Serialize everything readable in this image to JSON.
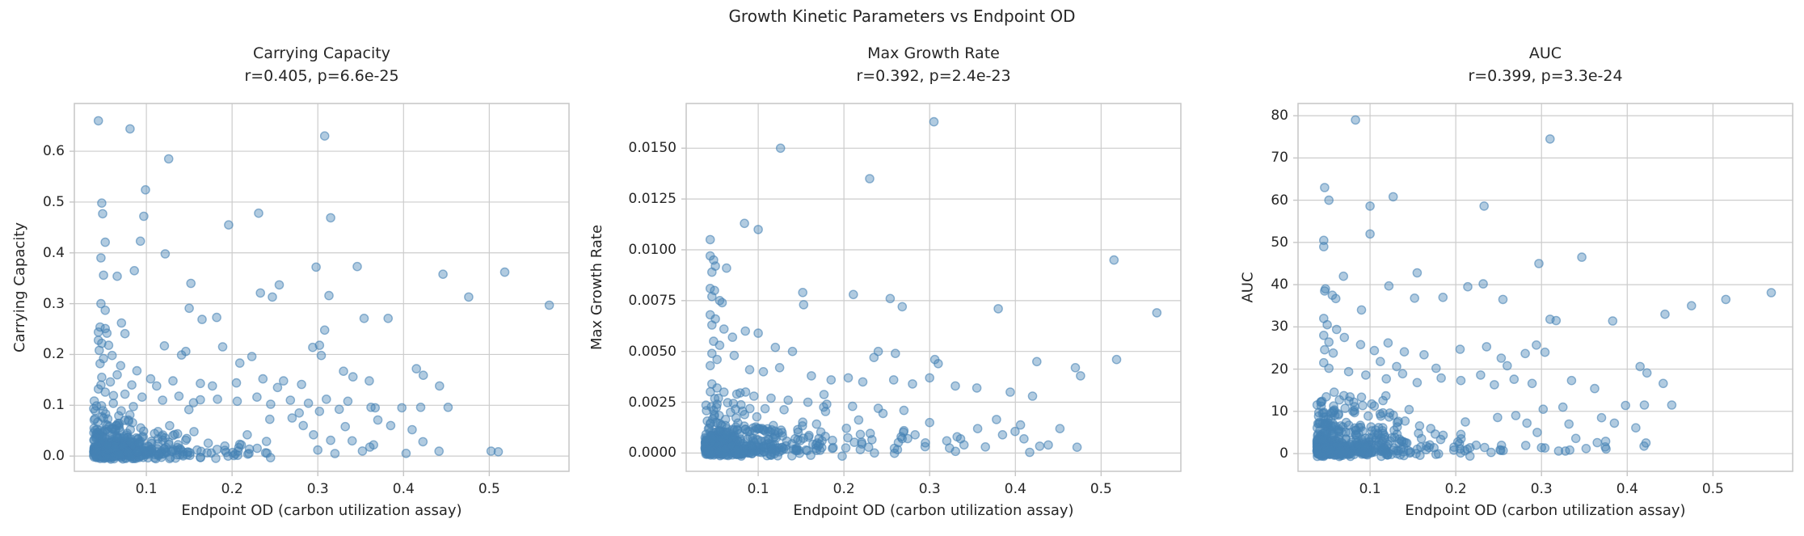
{
  "figure": {
    "suptitle": "Growth Kinetic Parameters vs Endpoint OD",
    "background": "#ffffff",
    "text_color": "#262626",
    "grid_color": "#cccccc",
    "spine_color": "#c6c6c6",
    "marker": {
      "color": "#4682b4",
      "fill_alpha": 0.42,
      "edge_alpha": 0.6,
      "radius": 5.1,
      "edge_width": 1.4
    }
  },
  "chart_data": [
    {
      "type": "scatter",
      "title_line1": "Carrying Capacity",
      "title_line2": "r=0.405, p=6.6e-25",
      "stats": {
        "r": 0.405,
        "p": "6.6e-25"
      },
      "xlabel": "Endpoint OD (carbon utilization assay)",
      "ylabel": "Carrying Capacity",
      "xlim": [
        0.016,
        0.593
      ],
      "ylim": [
        -0.03,
        0.694
      ],
      "xticks": [
        0.1,
        0.2,
        0.3,
        0.4,
        0.5
      ],
      "xtick_labels": [
        "0.1",
        "0.2",
        "0.3",
        "0.4",
        "0.5"
      ],
      "yticks": [
        0.0,
        0.1,
        0.2,
        0.3,
        0.4,
        0.5,
        0.6
      ],
      "ytick_labels": [
        "0.0",
        "0.1",
        "0.2",
        "0.3",
        "0.4",
        "0.5",
        "0.6"
      ],
      "grid": true,
      "legend": false,
      "outlier_points": [
        [
          0.044,
          0.66
        ],
        [
          0.081,
          0.644
        ],
        [
          0.308,
          0.63
        ],
        [
          0.126,
          0.585
        ],
        [
          0.099,
          0.524
        ],
        [
          0.048,
          0.498
        ],
        [
          0.049,
          0.477
        ],
        [
          0.097,
          0.472
        ],
        [
          0.231,
          0.478
        ],
        [
          0.196,
          0.455
        ],
        [
          0.315,
          0.469
        ],
        [
          0.052,
          0.421
        ],
        [
          0.093,
          0.423
        ],
        [
          0.122,
          0.398
        ],
        [
          0.047,
          0.39
        ],
        [
          0.086,
          0.365
        ],
        [
          0.05,
          0.356
        ],
        [
          0.066,
          0.354
        ],
        [
          0.152,
          0.34
        ],
        [
          0.298,
          0.372
        ],
        [
          0.346,
          0.373
        ],
        [
          0.446,
          0.358
        ],
        [
          0.518,
          0.362
        ],
        [
          0.476,
          0.313
        ],
        [
          0.57,
          0.297
        ],
        [
          0.255,
          0.337
        ],
        [
          0.233,
          0.321
        ],
        [
          0.247,
          0.313
        ],
        [
          0.313,
          0.316
        ],
        [
          0.15,
          0.291
        ],
        [
          0.165,
          0.269
        ],
        [
          0.182,
          0.273
        ],
        [
          0.308,
          0.248
        ],
        [
          0.302,
          0.218
        ],
        [
          0.354,
          0.271
        ],
        [
          0.382,
          0.271
        ],
        [
          0.047,
          0.3
        ],
        [
          0.052,
          0.287
        ],
        [
          0.046,
          0.254
        ],
        [
          0.052,
          0.251
        ],
        [
          0.044,
          0.244
        ],
        [
          0.054,
          0.242
        ],
        [
          0.071,
          0.262
        ],
        [
          0.075,
          0.241
        ],
        [
          0.121,
          0.217
        ],
        [
          0.141,
          0.199
        ],
        [
          0.146,
          0.206
        ],
        [
          0.189,
          0.215
        ],
        [
          0.209,
          0.183
        ],
        [
          0.223,
          0.196
        ],
        [
          0.294,
          0.214
        ],
        [
          0.304,
          0.198
        ],
        [
          0.33,
          0.167
        ],
        [
          0.341,
          0.156
        ],
        [
          0.36,
          0.148
        ],
        [
          0.415,
          0.172
        ],
        [
          0.423,
          0.159
        ],
        [
          0.398,
          0.095
        ],
        [
          0.42,
          0.096
        ],
        [
          0.332,
          0.058
        ],
        [
          0.352,
          0.01
        ],
        [
          0.37,
          0.071
        ],
        [
          0.044,
          0.228
        ],
        [
          0.048,
          0.222
        ],
        [
          0.056,
          0.218
        ],
        [
          0.045,
          0.208
        ],
        [
          0.06,
          0.198
        ],
        [
          0.05,
          0.192
        ],
        [
          0.046,
          0.182
        ],
        [
          0.07,
          0.178
        ],
        [
          0.089,
          0.168
        ],
        [
          0.066,
          0.16
        ],
        [
          0.048,
          0.155
        ],
        [
          0.058,
          0.146
        ],
        [
          0.083,
          0.14
        ],
        [
          0.105,
          0.152
        ],
        [
          0.112,
          0.138
        ],
        [
          0.131,
          0.148
        ],
        [
          0.163,
          0.143
        ],
        [
          0.177,
          0.138
        ],
        [
          0.205,
          0.144
        ],
        [
          0.236,
          0.152
        ],
        [
          0.253,
          0.135
        ],
        [
          0.26,
          0.148
        ],
        [
          0.281,
          0.141
        ],
        [
          0.047,
          0.14
        ],
        [
          0.044,
          0.132
        ],
        [
          0.052,
          0.126
        ],
        [
          0.075,
          0.122
        ],
        [
          0.095,
          0.116
        ],
        [
          0.119,
          0.11
        ],
        [
          0.138,
          0.118
        ],
        [
          0.155,
          0.105
        ],
        [
          0.183,
          0.112
        ],
        [
          0.206,
          0.108
        ],
        [
          0.229,
          0.116
        ],
        [
          0.245,
          0.102
        ],
        [
          0.268,
          0.11
        ],
        [
          0.289,
          0.104
        ],
        [
          0.31,
          0.112
        ],
        [
          0.335,
          0.108
        ],
        [
          0.362,
          0.096
        ],
        [
          0.442,
          0.138
        ],
        [
          0.385,
          0.06
        ],
        [
          0.41,
          0.052
        ],
        [
          0.302,
          0.088
        ],
        [
          0.325,
          0.092
        ],
        [
          0.452,
          0.096
        ],
        [
          0.34,
          0.03
        ],
        [
          0.365,
          0.022
        ],
        [
          0.3,
          0.012
        ],
        [
          0.32,
          0.005
        ],
        [
          0.283,
          0.06
        ],
        [
          0.27,
          0.075
        ],
        [
          0.295,
          0.042
        ]
      ],
      "cluster": {
        "count": 540,
        "seed": 7,
        "x_min": 0.038,
        "x_scale": 0.034,
        "wide_frac": 0.17,
        "x_scale_wide": 0.095,
        "x_max": 0.555,
        "y_scale": 0.0155,
        "y_boost_frac": 0.22,
        "y_boost": 3.2,
        "y_max": 0.125,
        "y_jitter": 0.007,
        "y_min": -0.008
      }
    },
    {
      "type": "scatter",
      "title_line1": "Max Growth Rate",
      "title_line2": "r=0.392, p=2.4e-23",
      "stats": {
        "r": 0.392,
        "p": "2.4e-23"
      },
      "xlabel": "Endpoint OD (carbon utilization assay)",
      "ylabel": "Max Growth Rate",
      "xlim": [
        0.016,
        0.593
      ],
      "ylim": [
        -0.0009,
        0.0172
      ],
      "xticks": [
        0.1,
        0.2,
        0.3,
        0.4,
        0.5
      ],
      "xtick_labels": [
        "0.1",
        "0.2",
        "0.3",
        "0.4",
        "0.5"
      ],
      "yticks": [
        0.0,
        0.0025,
        0.005,
        0.0075,
        0.01,
        0.0125,
        0.015
      ],
      "ytick_labels": [
        "0.0000",
        "0.0025",
        "0.0050",
        "0.0075",
        "0.0100",
        "0.0125",
        "0.0150"
      ],
      "grid": true,
      "legend": false,
      "outlier_points": [
        [
          0.305,
          0.0163
        ],
        [
          0.126,
          0.015
        ],
        [
          0.23,
          0.0135
        ],
        [
          0.084,
          0.0113
        ],
        [
          0.1,
          0.011
        ],
        [
          0.044,
          0.0105
        ],
        [
          0.515,
          0.0095
        ],
        [
          0.044,
          0.0097
        ],
        [
          0.048,
          0.0095
        ],
        [
          0.05,
          0.0092
        ],
        [
          0.063,
          0.0091
        ],
        [
          0.046,
          0.0089
        ],
        [
          0.152,
          0.0079
        ],
        [
          0.211,
          0.0078
        ],
        [
          0.254,
          0.0076
        ],
        [
          0.044,
          0.0081
        ],
        [
          0.049,
          0.008
        ],
        [
          0.046,
          0.0077
        ],
        [
          0.055,
          0.0075
        ],
        [
          0.058,
          0.0074
        ],
        [
          0.153,
          0.0073
        ],
        [
          0.268,
          0.0072
        ],
        [
          0.38,
          0.0071
        ],
        [
          0.565,
          0.0069
        ],
        [
          0.044,
          0.0068
        ],
        [
          0.05,
          0.0066
        ],
        [
          0.046,
          0.0063
        ],
        [
          0.06,
          0.0061
        ],
        [
          0.085,
          0.006
        ],
        [
          0.1,
          0.0059
        ],
        [
          0.07,
          0.0057
        ],
        [
          0.048,
          0.0055
        ],
        [
          0.055,
          0.0053
        ],
        [
          0.12,
          0.0052
        ],
        [
          0.14,
          0.005
        ],
        [
          0.046,
          0.0049
        ],
        [
          0.072,
          0.0048
        ],
        [
          0.052,
          0.0046
        ],
        [
          0.24,
          0.005
        ],
        [
          0.26,
          0.0049
        ],
        [
          0.235,
          0.0047
        ],
        [
          0.306,
          0.0046
        ],
        [
          0.31,
          0.0044
        ],
        [
          0.425,
          0.0045
        ],
        [
          0.47,
          0.0042
        ],
        [
          0.518,
          0.0046
        ],
        [
          0.476,
          0.0038
        ],
        [
          0.044,
          0.0043
        ],
        [
          0.09,
          0.0041
        ],
        [
          0.106,
          0.004
        ],
        [
          0.125,
          0.0042
        ],
        [
          0.162,
          0.0038
        ],
        [
          0.185,
          0.0036
        ],
        [
          0.205,
          0.0037
        ],
        [
          0.222,
          0.0035
        ],
        [
          0.258,
          0.0036
        ],
        [
          0.28,
          0.0034
        ],
        [
          0.3,
          0.0037
        ],
        [
          0.33,
          0.0033
        ],
        [
          0.355,
          0.0032
        ],
        [
          0.394,
          0.003
        ],
        [
          0.42,
          0.0028
        ],
        [
          0.046,
          0.0034
        ],
        [
          0.052,
          0.0032
        ],
        [
          0.06,
          0.003
        ],
        [
          0.075,
          0.0029
        ],
        [
          0.095,
          0.0028
        ],
        [
          0.115,
          0.0027
        ],
        [
          0.135,
          0.0026
        ],
        [
          0.158,
          0.0025
        ],
        [
          0.18,
          0.0024
        ],
        [
          0.21,
          0.0023
        ],
        [
          0.24,
          0.0022
        ],
        [
          0.27,
          0.0021
        ],
        [
          0.052,
          0.0024
        ],
        [
          0.048,
          0.0021
        ],
        [
          0.356,
          0.0012
        ],
        [
          0.332,
          0.0008
        ],
        [
          0.3,
          0.0015
        ],
        [
          0.32,
          0.0006
        ],
        [
          0.34,
          0.0004
        ],
        [
          0.365,
          0.0003
        ],
        [
          0.385,
          0.0009
        ],
        [
          0.41,
          0.0007
        ],
        [
          0.283,
          0.0009
        ],
        [
          0.27,
          0.0011
        ],
        [
          0.295,
          0.0005
        ],
        [
          0.452,
          0.0012
        ]
      ],
      "cluster": {
        "count": 540,
        "seed": 13,
        "x_min": 0.038,
        "x_scale": 0.034,
        "wide_frac": 0.17,
        "x_scale_wide": 0.095,
        "x_max": 0.555,
        "y_scale": 0.0004,
        "y_boost_frac": 0.22,
        "y_boost": 3.0,
        "y_max": 0.0031,
        "y_jitter": 0.00018,
        "y_min": -0.0002
      }
    },
    {
      "type": "scatter",
      "title_line1": "AUC",
      "title_line2": "r=0.399, p=3.3e-24",
      "stats": {
        "r": 0.399,
        "p": "3.3e-24"
      },
      "xlabel": "Endpoint OD (carbon utilization assay)",
      "ylabel": "AUC",
      "xlim": [
        0.016,
        0.593
      ],
      "ylim": [
        -4.2,
        82.9
      ],
      "xticks": [
        0.1,
        0.2,
        0.3,
        0.4,
        0.5
      ],
      "xtick_labels": [
        "0.1",
        "0.2",
        "0.3",
        "0.4",
        "0.5"
      ],
      "yticks": [
        0,
        10,
        20,
        30,
        40,
        50,
        60,
        70,
        80
      ],
      "ytick_labels": [
        "0",
        "10",
        "20",
        "30",
        "40",
        "50",
        "60",
        "70",
        "80"
      ],
      "grid": true,
      "legend": false,
      "outlier_points": [
        [
          0.083,
          79.0
        ],
        [
          0.31,
          74.5
        ],
        [
          0.047,
          63.0
        ],
        [
          0.127,
          60.8
        ],
        [
          0.052,
          60.0
        ],
        [
          0.1,
          58.6
        ],
        [
          0.233,
          58.6
        ],
        [
          0.1,
          52.0
        ],
        [
          0.046,
          50.5
        ],
        [
          0.046,
          49.0
        ],
        [
          0.347,
          46.5
        ],
        [
          0.297,
          45.0
        ],
        [
          0.069,
          42.0
        ],
        [
          0.155,
          42.8
        ],
        [
          0.122,
          39.7
        ],
        [
          0.048,
          39.0
        ],
        [
          0.047,
          38.5
        ],
        [
          0.214,
          39.5
        ],
        [
          0.232,
          40.2
        ],
        [
          0.056,
          37.5
        ],
        [
          0.06,
          36.7
        ],
        [
          0.152,
          36.8
        ],
        [
          0.185,
          37.0
        ],
        [
          0.255,
          36.5
        ],
        [
          0.475,
          35.0
        ],
        [
          0.515,
          36.5
        ],
        [
          0.568,
          38.1
        ],
        [
          0.09,
          34.0
        ],
        [
          0.317,
          31.5
        ],
        [
          0.383,
          31.4
        ],
        [
          0.444,
          33.0
        ],
        [
          0.31,
          31.8
        ],
        [
          0.046,
          32.0
        ],
        [
          0.05,
          30.5
        ],
        [
          0.061,
          29.4
        ],
        [
          0.046,
          28.0
        ],
        [
          0.07,
          27.5
        ],
        [
          0.052,
          26.4
        ],
        [
          0.089,
          25.8
        ],
        [
          0.047,
          24.6
        ],
        [
          0.057,
          23.8
        ],
        [
          0.105,
          24.4
        ],
        [
          0.121,
          26.2
        ],
        [
          0.14,
          24.1
        ],
        [
          0.163,
          23.4
        ],
        [
          0.205,
          24.7
        ],
        [
          0.236,
          25.3
        ],
        [
          0.253,
          22.6
        ],
        [
          0.281,
          23.7
        ],
        [
          0.304,
          24.0
        ],
        [
          0.294,
          25.7
        ],
        [
          0.112,
          21.8
        ],
        [
          0.131,
          20.6
        ],
        [
          0.177,
          20.2
        ],
        [
          0.26,
          20.8
        ],
        [
          0.046,
          21.5
        ],
        [
          0.052,
          20.2
        ],
        [
          0.075,
          19.4
        ],
        [
          0.095,
          18.6
        ],
        [
          0.119,
          17.7
        ],
        [
          0.138,
          18.9
        ],
        [
          0.155,
          16.8
        ],
        [
          0.183,
          17.9
        ],
        [
          0.206,
          17.3
        ],
        [
          0.229,
          18.6
        ],
        [
          0.245,
          16.3
        ],
        [
          0.268,
          17.6
        ],
        [
          0.289,
          16.6
        ],
        [
          0.335,
          17.3
        ],
        [
          0.362,
          15.4
        ],
        [
          0.415,
          20.6
        ],
        [
          0.423,
          19.1
        ],
        [
          0.398,
          11.4
        ],
        [
          0.42,
          11.5
        ],
        [
          0.442,
          16.6
        ],
        [
          0.332,
          7.0
        ],
        [
          0.352,
          1.2
        ],
        [
          0.37,
          8.5
        ],
        [
          0.385,
          7.2
        ],
        [
          0.41,
          6.1
        ],
        [
          0.302,
          10.5
        ],
        [
          0.325,
          11.0
        ],
        [
          0.452,
          11.5
        ],
        [
          0.34,
          3.6
        ],
        [
          0.365,
          2.6
        ],
        [
          0.3,
          1.4
        ],
        [
          0.32,
          0.6
        ],
        [
          0.283,
          7.2
        ],
        [
          0.27,
          9.0
        ],
        [
          0.295,
          5.0
        ]
      ],
      "cluster": {
        "count": 540,
        "seed": 23,
        "x_min": 0.038,
        "x_scale": 0.034,
        "wide_frac": 0.17,
        "x_scale_wide": 0.095,
        "x_max": 0.555,
        "y_scale": 1.9,
        "y_boost_frac": 0.22,
        "y_boost": 3.1,
        "y_max": 15.0,
        "y_jitter": 0.85,
        "y_min": -1.9
      }
    }
  ]
}
